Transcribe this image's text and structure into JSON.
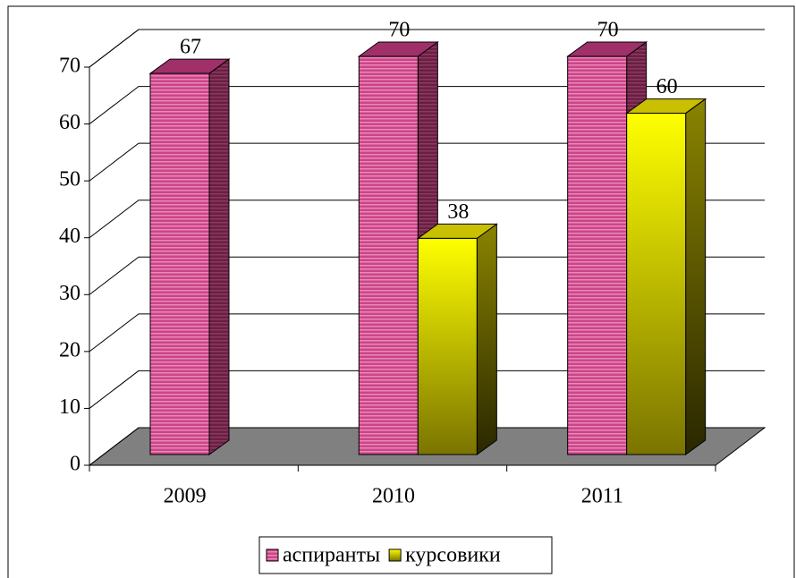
{
  "chart_data": {
    "type": "bar3d",
    "categories": [
      "2009",
      "2010",
      "2011"
    ],
    "series": [
      {
        "name": "аспиранты",
        "color": "#cc4488",
        "values": [
          67,
          70,
          70
        ]
      },
      {
        "name": "курсовики",
        "color": "#ffff00",
        "values": [
          null,
          38,
          60
        ]
      }
    ],
    "ylim": [
      0,
      70
    ],
    "yticks": [
      0,
      10,
      20,
      30,
      40,
      50,
      60,
      70
    ],
    "grid": true,
    "legend": "bottom"
  }
}
